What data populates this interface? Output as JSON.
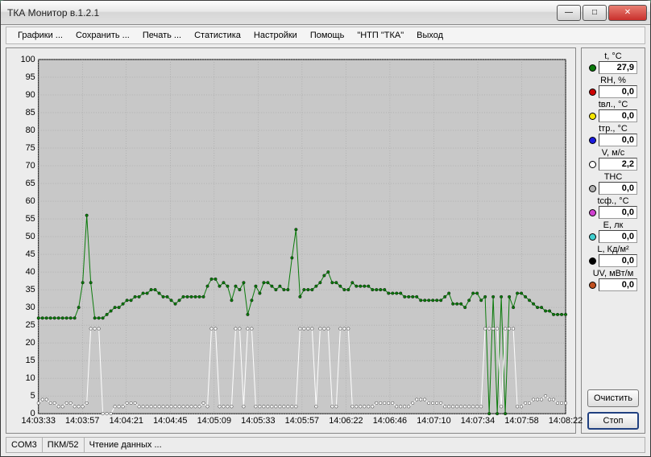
{
  "window": {
    "title": "ТКА Монитор в.1.2.1"
  },
  "menu": {
    "items": [
      "Графики ...",
      "Сохранить ...",
      "Печать ...",
      "Статистика",
      "Настройки",
      "Помощь",
      "\"НТП \"ТКА\"",
      "Выход"
    ]
  },
  "buttons": {
    "clear": "Очистить",
    "stop": "Стоп"
  },
  "status": {
    "port": "COM3",
    "device": "ПКМ/52",
    "message": "Чтение данных ..."
  },
  "sensors": [
    {
      "label": "t, °C",
      "color": "#0a7a0a",
      "value": "27,9"
    },
    {
      "label": "RH, %",
      "color": "#cc0000",
      "value": "0,0"
    },
    {
      "label": "tвл., °C",
      "color": "#f5e600",
      "value": "0,0"
    },
    {
      "label": "tтр., °C",
      "color": "#1a1ae0",
      "value": "0,0"
    },
    {
      "label": "V, м/с",
      "color": "#ffffff",
      "value": "2,2"
    },
    {
      "label": "ТНС",
      "color": "#b0b0b0",
      "value": "0,0"
    },
    {
      "label": "tсф., °C",
      "color": "#d040d0",
      "value": "0,0"
    },
    {
      "label": "E, лк",
      "color": "#40d0d0",
      "value": "0,0"
    },
    {
      "label": "L, Кд/м²",
      "color": "#000000",
      "value": "0,0"
    },
    {
      "label": "UV, мВт/м",
      "color": "#c05020",
      "value": "0,0"
    }
  ],
  "chart": {
    "background": "#c8c8c8",
    "grid_color": "#9a9a9a",
    "axis_color": "#000000",
    "text_color": "#000000",
    "ylim": [
      0,
      100
    ],
    "ytick_step": 5,
    "x_labels": [
      "14:03:33",
      "14:03:57",
      "14:04:21",
      "14:04:45",
      "14:05:09",
      "14:05:33",
      "14:05:57",
      "14:06:22",
      "14:06:46",
      "14:07:10",
      "14:07:34",
      "14:07:58",
      "14:08:22"
    ],
    "series": [
      {
        "name": "t",
        "color": "#0a7a0a",
        "marker_fill": "#0a7a0a",
        "data": [
          27,
          27,
          27,
          27,
          27,
          27,
          27,
          27,
          27,
          27,
          30,
          37,
          56,
          37,
          27,
          27,
          27,
          28,
          29,
          30,
          30,
          31,
          32,
          32,
          33,
          33,
          34,
          34,
          35,
          35,
          34,
          33,
          33,
          32,
          31,
          32,
          33,
          33,
          33,
          33,
          33,
          33,
          36,
          38,
          38,
          36,
          37,
          36,
          32,
          36,
          35,
          37,
          28,
          32,
          36,
          34,
          37,
          37,
          36,
          35,
          36,
          35,
          35,
          44,
          52,
          33,
          35,
          35,
          35,
          36,
          37,
          39,
          40,
          37,
          37,
          36,
          35,
          35,
          37,
          36,
          36,
          36,
          36,
          35,
          35,
          35,
          35,
          34,
          34,
          34,
          34,
          33,
          33,
          33,
          33,
          32,
          32,
          32,
          32,
          32,
          32,
          33,
          34,
          31,
          31,
          31,
          30,
          32,
          34,
          34,
          32,
          33,
          0,
          33,
          0,
          33,
          0,
          33,
          30,
          34,
          34,
          33,
          32,
          31,
          30,
          30,
          29,
          29,
          28,
          28,
          28,
          28
        ]
      },
      {
        "name": "V",
        "color": "#ffffff",
        "marker_fill": "#ffffff",
        "data": [
          3,
          4,
          4,
          3,
          3,
          2,
          2,
          3,
          3,
          2,
          2,
          2,
          3,
          24,
          24,
          24,
          0,
          0,
          0,
          2,
          2,
          2,
          3,
          3,
          3,
          2,
          2,
          2,
          2,
          2,
          2,
          2,
          2,
          2,
          2,
          2,
          2,
          2,
          2,
          2,
          2,
          3,
          2,
          24,
          24,
          2,
          2,
          2,
          2,
          24,
          24,
          2,
          24,
          24,
          2,
          2,
          2,
          2,
          2,
          2,
          2,
          2,
          2,
          2,
          2,
          24,
          24,
          24,
          24,
          2,
          24,
          24,
          24,
          2,
          2,
          24,
          24,
          24,
          2,
          2,
          2,
          2,
          2,
          2,
          3,
          3,
          3,
          3,
          3,
          2,
          2,
          2,
          2,
          3,
          4,
          4,
          4,
          3,
          3,
          3,
          3,
          2,
          2,
          2,
          2,
          2,
          2,
          2,
          2,
          2,
          2,
          24,
          24,
          24,
          24,
          2,
          24,
          24,
          24,
          2,
          2,
          3,
          3,
          4,
          4,
          4,
          5,
          4,
          4,
          3,
          3,
          3
        ]
      }
    ]
  }
}
